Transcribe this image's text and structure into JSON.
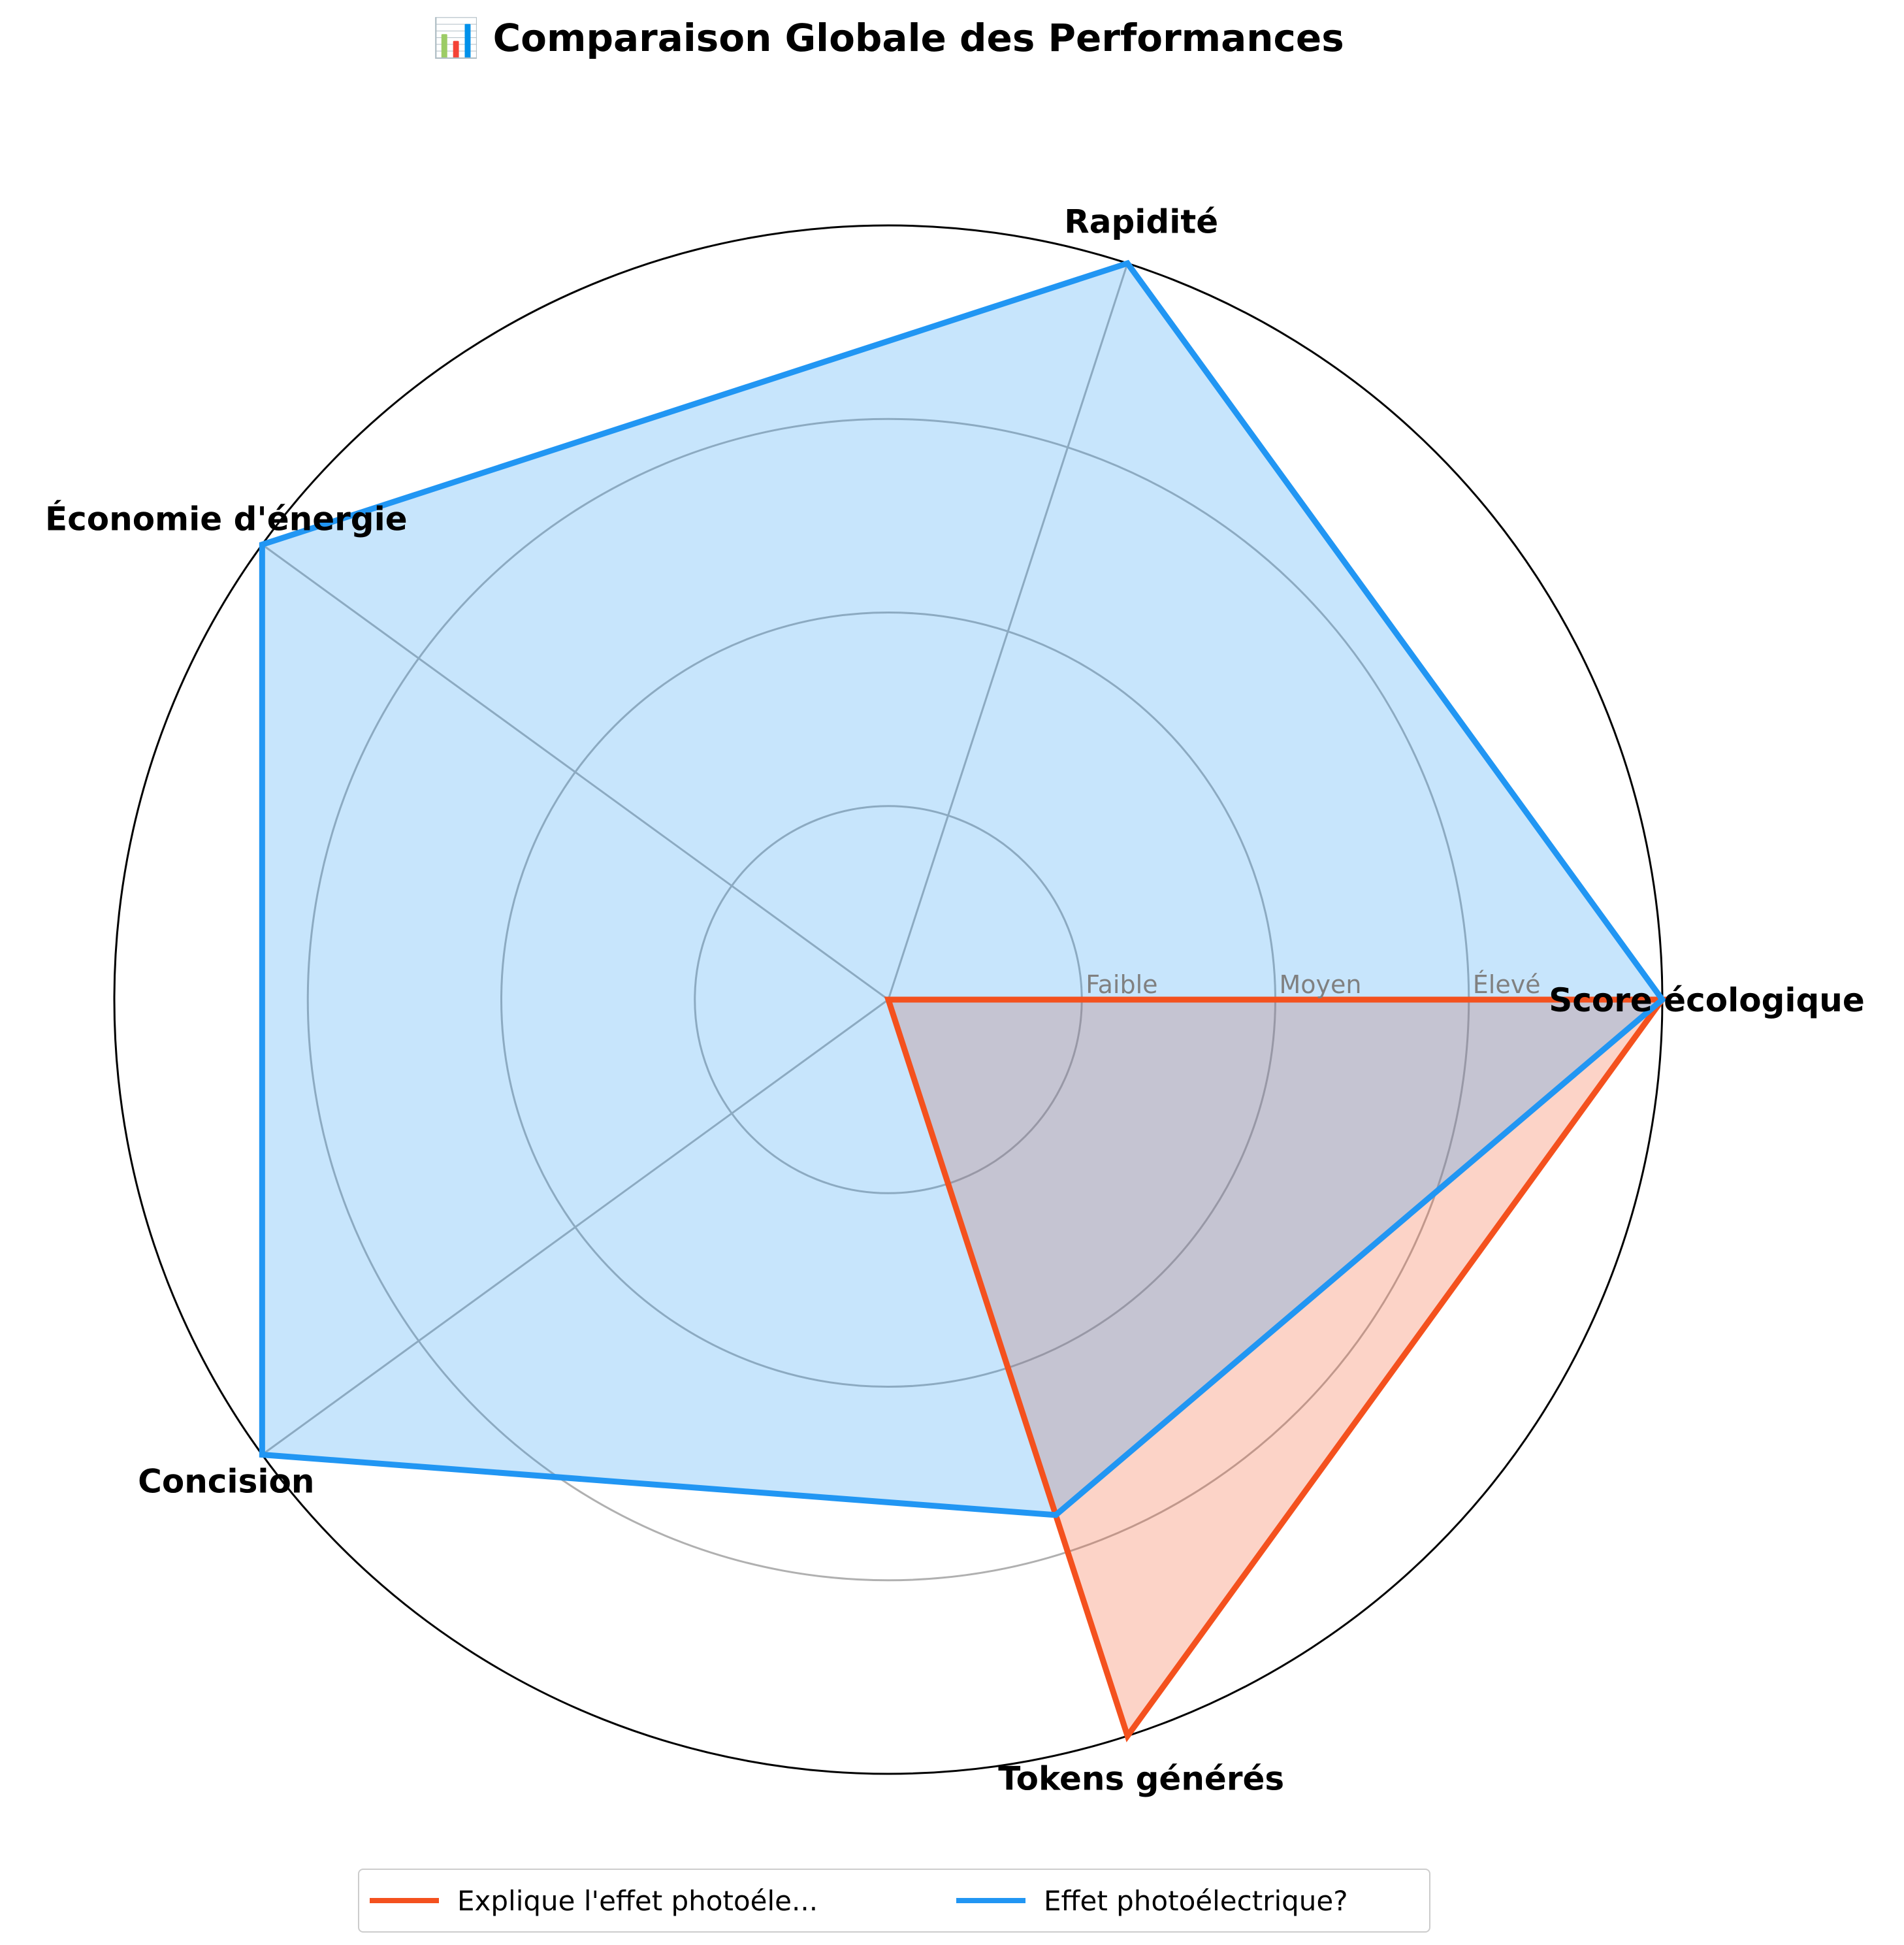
{
  "chart_data": {
    "type": "radar",
    "title": "📊 Comparaison Globale des Performances",
    "axes": [
      "Score écologique",
      "Rapidité",
      "Économie d'énergie",
      "Concision",
      "Tokens générés"
    ],
    "rlim": [
      0,
      4
    ],
    "tick_values": [
      1,
      2,
      3
    ],
    "tick_labels": [
      "Faible",
      "Moyen",
      "Élevé"
    ],
    "grid": true,
    "legend_position": "bottom-center",
    "series": [
      {
        "name": "Explique l'effet photoéle...",
        "color": "#F4511E",
        "values": [
          4,
          0,
          0,
          0,
          4
        ]
      },
      {
        "name": "Effet photoélectrique?",
        "color": "#2196F3",
        "values": [
          4,
          4,
          4,
          4,
          2.8
        ]
      }
    ]
  }
}
